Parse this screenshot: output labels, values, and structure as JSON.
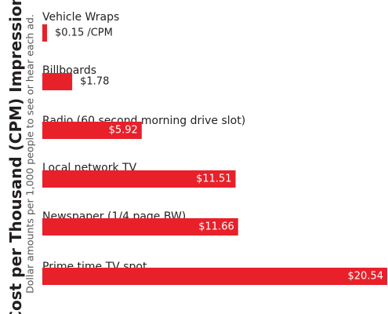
{
  "chart_data": {
    "type": "bar",
    "orientation": "horizontal",
    "ylabel": "Cost per Thousand (CPM) Impressions",
    "ylabel_subtitle": "Dollar amounts per 1,000 people to see or hear each ad.",
    "categories": [
      "Vehicle Wraps",
      "Billboards",
      "Radio (60 second morning drive slot)",
      "Local network TV",
      "Newspaper (1/4 page BW)",
      "Prime time TV spot"
    ],
    "values": [
      0.15,
      1.78,
      5.92,
      11.51,
      11.66,
      20.54
    ],
    "value_labels": [
      "$0.15 /CPM",
      "$1.78",
      "$5.92",
      "$11.51",
      "$11.66",
      "$20.54"
    ],
    "xlim": [
      0,
      20.54
    ],
    "grid": false,
    "legend": "none",
    "colors": {
      "bar": "#e8202a",
      "text": "#231f20",
      "bar_label": "#ffffff",
      "subtitle": "#555555"
    }
  }
}
